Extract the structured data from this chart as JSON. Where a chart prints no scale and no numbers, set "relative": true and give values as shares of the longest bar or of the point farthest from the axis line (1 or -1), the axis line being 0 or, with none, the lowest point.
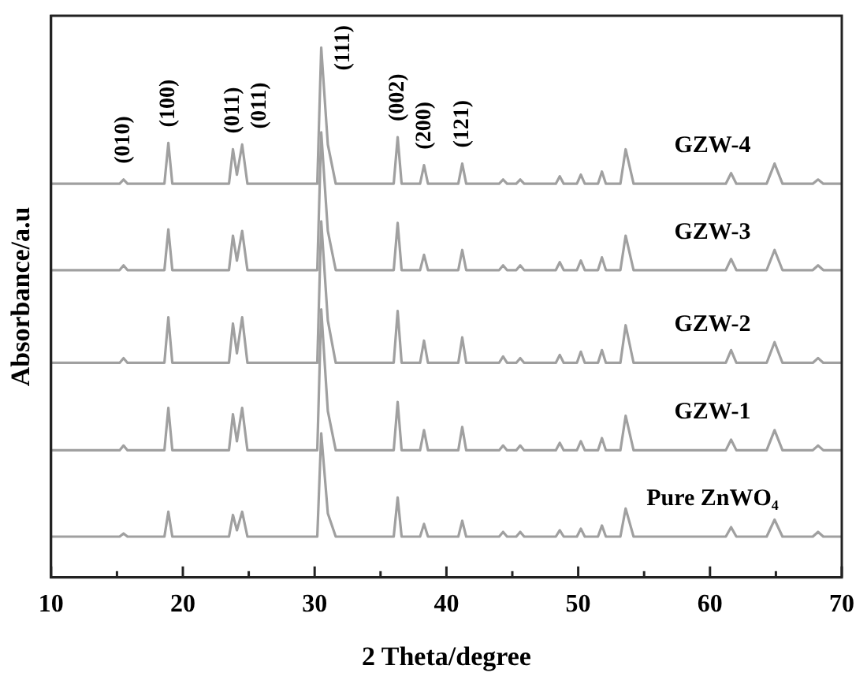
{
  "chart_data": {
    "type": "line",
    "xlabel": "2 Theta/degree",
    "ylabel": "Absorbance/a.u",
    "relative": true,
    "legend": false,
    "grid": false,
    "marker": "none",
    "line_style": "solid",
    "xlim": [
      10,
      70
    ],
    "xticks": [
      10,
      {
        "value": 15,
        "label": null
      },
      20,
      {
        "value": 25,
        "label": null
      },
      30,
      {
        "value": 35,
        "label": null
      },
      40,
      {
        "value": 45,
        "label": null
      },
      50,
      {
        "value": 55,
        "label": null
      },
      60,
      {
        "value": 65,
        "label": null
      },
      70
    ],
    "x": [
      10,
      15.2,
      15.5,
      15.8,
      18.6,
      18.9,
      19.2,
      23.5,
      23.8,
      24.1,
      24.5,
      24.9,
      30.2,
      30.5,
      31.0,
      31.6,
      36.0,
      36.3,
      36.6,
      38.0,
      38.3,
      38.6,
      40.9,
      41.2,
      41.5,
      44.0,
      44.3,
      44.6,
      45.3,
      45.6,
      45.9,
      48.3,
      48.6,
      48.9,
      49.9,
      50.2,
      50.5,
      51.5,
      51.8,
      52.1,
      53.2,
      53.6,
      54.2,
      61.2,
      61.6,
      62.0,
      64.3,
      64.9,
      65.5,
      67.8,
      68.2,
      68.6,
      70
    ],
    "series": [
      {
        "name": "GZW-4",
        "color": "#a0a0a0",
        "values": [
          0.743,
          0.743,
          0.751,
          0.743,
          0.743,
          0.82,
          0.743,
          0.743,
          0.808,
          0.76,
          0.817,
          0.743,
          0.743,
          1,
          0.817,
          0.743,
          0.743,
          0.831,
          0.743,
          0.743,
          0.778,
          0.743,
          0.743,
          0.781,
          0.743,
          0.743,
          0.751,
          0.743,
          0.743,
          0.751,
          0.743,
          0.743,
          0.757,
          0.743,
          0.743,
          0.76,
          0.743,
          0.743,
          0.766,
          0.743,
          0.743,
          0.808,
          0.743,
          0.743,
          0.763,
          0.743,
          0.743,
          0.781,
          0.743,
          0.743,
          0.751,
          0.743,
          0.743
        ]
      },
      {
        "name": "GZW-3",
        "color": "#a0a0a0",
        "values": [
          0.58,
          0.58,
          0.589,
          0.58,
          0.58,
          0.657,
          0.58,
          0.58,
          0.645,
          0.598,
          0.654,
          0.58,
          0.58,
          0.84,
          0.654,
          0.58,
          0.58,
          0.669,
          0.58,
          0.58,
          0.609,
          0.58,
          0.58,
          0.618,
          0.58,
          0.58,
          0.589,
          0.58,
          0.58,
          0.589,
          0.58,
          0.58,
          0.595,
          0.58,
          0.58,
          0.598,
          0.58,
          0.58,
          0.604,
          0.58,
          0.58,
          0.645,
          0.58,
          0.58,
          0.601,
          0.58,
          0.58,
          0.618,
          0.58,
          0.58,
          0.589,
          0.58,
          0.58
        ]
      },
      {
        "name": "GZW-2",
        "color": "#a0a0a0",
        "values": [
          0.405,
          0.405,
          0.414,
          0.405,
          0.405,
          0.491,
          0.405,
          0.405,
          0.479,
          0.423,
          0.491,
          0.405,
          0.405,
          0.672,
          0.485,
          0.405,
          0.405,
          0.503,
          0.405,
          0.405,
          0.447,
          0.405,
          0.405,
          0.453,
          0.405,
          0.405,
          0.417,
          0.405,
          0.405,
          0.414,
          0.405,
          0.405,
          0.42,
          0.405,
          0.405,
          0.426,
          0.405,
          0.405,
          0.429,
          0.405,
          0.405,
          0.476,
          0.405,
          0.405,
          0.429,
          0.405,
          0.405,
          0.444,
          0.405,
          0.405,
          0.414,
          0.405,
          0.405
        ]
      },
      {
        "name": "GZW-1",
        "color": "#a0a0a0",
        "values": [
          0.24,
          0.24,
          0.249,
          0.24,
          0.24,
          0.32,
          0.24,
          0.24,
          0.308,
          0.257,
          0.32,
          0.24,
          0.24,
          0.506,
          0.314,
          0.24,
          0.24,
          0.331,
          0.24,
          0.24,
          0.278,
          0.24,
          0.24,
          0.284,
          0.24,
          0.24,
          0.249,
          0.24,
          0.24,
          0.249,
          0.24,
          0.24,
          0.254,
          0.24,
          0.24,
          0.257,
          0.24,
          0.24,
          0.263,
          0.24,
          0.24,
          0.305,
          0.24,
          0.24,
          0.26,
          0.24,
          0.24,
          0.278,
          0.24,
          0.24,
          0.249,
          0.24,
          0.24
        ]
      },
      {
        "name": "Pure ZnWO₄",
        "color": "#a0a0a0",
        "values": [
          0.077,
          0.077,
          0.083,
          0.077,
          0.077,
          0.124,
          0.077,
          0.077,
          0.118,
          0.089,
          0.124,
          0.077,
          0.077,
          0.272,
          0.121,
          0.077,
          0.077,
          0.151,
          0.077,
          0.077,
          0.101,
          0.077,
          0.077,
          0.107,
          0.077,
          0.077,
          0.086,
          0.077,
          0.077,
          0.086,
          0.077,
          0.077,
          0.089,
          0.077,
          0.077,
          0.092,
          0.077,
          0.077,
          0.098,
          0.077,
          0.077,
          0.13,
          0.077,
          0.077,
          0.095,
          0.077,
          0.077,
          0.109,
          0.077,
          0.077,
          0.086,
          0.077,
          0.077
        ]
      }
    ],
    "annotations": [
      {
        "text": "(010)",
        "x": 15.5,
        "y": 0.751
      },
      {
        "text": "(100)",
        "x": 18.9,
        "y": 0.82
      },
      {
        "text": "(011)",
        "x": 23.8,
        "y": 0.808
      },
      {
        "text": "(011)",
        "x": 24.5,
        "y": 0.817
      },
      {
        "text": "(111)",
        "x": 30.5,
        "y": 1
      },
      {
        "text": "(002)",
        "x": 36.3,
        "y": 0.831
      },
      {
        "text": "(200)",
        "x": 38.3,
        "y": 0.778
      },
      {
        "text": "(121)",
        "x": 41.2,
        "y": 0.781
      }
    ]
  }
}
